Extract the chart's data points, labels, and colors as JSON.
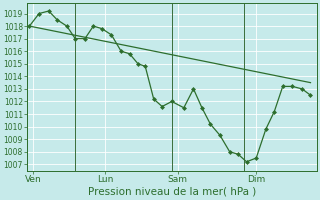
{
  "title": "Pression niveau de la mer( hPa )",
  "background_color": "#c6eaea",
  "grid_color": "#b0d8d8",
  "line_color": "#2d6e2d",
  "marker_color": "#2d6e2d",
  "ylim": [
    1006.5,
    1019.8
  ],
  "yticks": [
    1007,
    1008,
    1009,
    1010,
    1011,
    1012,
    1013,
    1014,
    1015,
    1016,
    1017,
    1018,
    1019
  ],
  "day_labels": [
    "Ven",
    "Lun",
    "Sam",
    "Dim"
  ],
  "day_positions": [
    0.5,
    6.5,
    12.5,
    19.0
  ],
  "vline_positions": [
    0,
    4,
    12,
    18,
    24
  ],
  "xlim": [
    0,
    24
  ],
  "series_detail": {
    "x": [
      0.2,
      1.0,
      1.8,
      2.5,
      3.3,
      4.0,
      4.8,
      5.5,
      6.2,
      7.0,
      7.8,
      8.5,
      9.2,
      9.8,
      10.5,
      11.2,
      12.0,
      13.0,
      13.8,
      14.5,
      15.2,
      16.0,
      16.8,
      17.5,
      18.2,
      19.0,
      19.8,
      20.5,
      21.2,
      22.0,
      22.8,
      23.5
    ],
    "y": [
      1018.0,
      1019.0,
      1019.2,
      1018.5,
      1018.0,
      1017.0,
      1017.0,
      1018.0,
      1017.8,
      1017.3,
      1016.0,
      1015.8,
      1015.0,
      1014.8,
      1012.2,
      1011.6,
      1012.0,
      1011.5,
      1013.0,
      1011.5,
      1010.2,
      1009.3,
      1008.0,
      1007.8,
      1007.2,
      1007.5,
      1009.8,
      1011.2,
      1013.2,
      1013.2,
      1013.0,
      1012.5
    ]
  },
  "series_trend": {
    "x": [
      0.2,
      23.5
    ],
    "y": [
      1018.0,
      1013.5
    ]
  },
  "tick_fontsize": 5.5,
  "label_fontsize": 7.5,
  "day_label_fontsize": 6.5
}
